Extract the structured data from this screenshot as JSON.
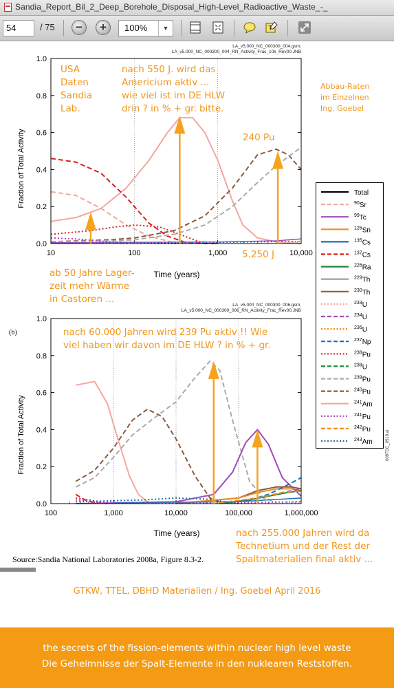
{
  "window": {
    "title": "Sandia_Report_Bil_2_Deep_Borehole_Disposal_High-Level_Radioactive_Waste_-_"
  },
  "toolbar": {
    "page_current": "54",
    "page_total": "/ 75",
    "zoom_value": "100%",
    "zoom_out_label": "−",
    "zoom_in_label": "+"
  },
  "colors": {
    "annotation": "#f0961c",
    "banner": "#f49a13",
    "arrow": "#f7a21c"
  },
  "legend": {
    "items": [
      {
        "label": "Total",
        "sup": "",
        "color": "#000000",
        "dash": "solid"
      },
      {
        "label": "Sr",
        "sup": "90",
        "color": "#f4a7a0",
        "dash": "dash"
      },
      {
        "label": "Tc",
        "sup": "99",
        "color": "#a14cb8",
        "dash": "solid"
      },
      {
        "label": "Sn",
        "sup": "126",
        "color": "#f08c1e",
        "dash": "solid"
      },
      {
        "label": "Cs",
        "sup": "135",
        "color": "#1f6fb0",
        "dash": "solid"
      },
      {
        "label": "Cs",
        "sup": "137",
        "color": "#d91f1f",
        "dash": "dash"
      },
      {
        "label": "Ra",
        "sup": "226",
        "color": "#1e8a3c",
        "dash": "solid"
      },
      {
        "label": "Th",
        "sup": "229",
        "color": "#999999",
        "dash": "solid"
      },
      {
        "label": "Th",
        "sup": "230",
        "color": "#8b5a3c",
        "dash": "solid"
      },
      {
        "label": "U",
        "sup": "233",
        "color": "#f4a7a0",
        "dash": "dot"
      },
      {
        "label": "U",
        "sup": "234",
        "color": "#a14cb8",
        "dash": "dash"
      },
      {
        "label": "U",
        "sup": "236",
        "color": "#f08c1e",
        "dash": "dot"
      },
      {
        "label": "Np",
        "sup": "237",
        "color": "#1f6fb0",
        "dash": "dash"
      },
      {
        "label": "Pu",
        "sup": "238",
        "color": "#d91f1f",
        "dash": "dot"
      },
      {
        "label": "U",
        "sup": "238",
        "color": "#1e8a3c",
        "dash": "dash"
      },
      {
        "label": "Pu",
        "sup": "239",
        "color": "#aaaaaa",
        "dash": "dash"
      },
      {
        "label": "Pu",
        "sup": "240",
        "color": "#8b5a3c",
        "dash": "dash"
      },
      {
        "label": "Am",
        "sup": "241",
        "color": "#f4a7a0",
        "dash": "solid"
      },
      {
        "label": "Pu",
        "sup": "241",
        "color": "#a14cb8",
        "dash": "dot"
      },
      {
        "label": "Pu",
        "sup": "242",
        "color": "#f08c1e",
        "dash": "dash"
      },
      {
        "label": "Am",
        "sup": "243",
        "color": "#1f6fb0",
        "dash": "dot"
      }
    ]
  },
  "chart_data": [
    {
      "type": "line",
      "panel": "a",
      "header_line1": "LA_v5.000_NC_000300_004.gsm;",
      "header_line2": "LA_v5.000_NC_000300_004_RN_Activity_Frac_10k_Rev00.JNB",
      "xlabel": "Time (years)",
      "ylabel": "Fraction of Total Activity",
      "xscale": "log",
      "xlim": [
        10,
        10000
      ],
      "ylim": [
        0,
        1.0
      ],
      "xticks": [
        10,
        100,
        1000,
        10000
      ],
      "xtick_labels": [
        "10",
        "100",
        "1,000",
        "10,000"
      ],
      "yticks": [
        0.0,
        0.2,
        0.4,
        0.6,
        0.8,
        1.0
      ],
      "ytick_labels": [
        "0.0",
        "0.2",
        "0.4",
        "0.6",
        "0.8",
        "1.0"
      ],
      "grid": "vertical-dotted",
      "series": [
        {
          "name": "241Am",
          "color": "#f4a7a0",
          "dash": "solid",
          "width": 2,
          "x": [
            10,
            20,
            40,
            80,
            150,
            250,
            350,
            500,
            700,
            1000,
            1500,
            2000,
            3000,
            5000,
            10000
          ],
          "y": [
            0.12,
            0.14,
            0.19,
            0.3,
            0.45,
            0.6,
            0.68,
            0.68,
            0.6,
            0.45,
            0.23,
            0.1,
            0.03,
            0.01,
            0.0
          ]
        },
        {
          "name": "90Sr",
          "color": "#f4a7a0",
          "dash": "dash",
          "width": 2,
          "x": [
            10,
            20,
            40,
            80,
            150,
            300,
            600,
            1000
          ],
          "y": [
            0.28,
            0.26,
            0.19,
            0.1,
            0.04,
            0.005,
            0.0,
            0.0
          ]
        },
        {
          "name": "137Cs",
          "color": "#d91f1f",
          "dash": "dash",
          "width": 2,
          "x": [
            10,
            20,
            40,
            80,
            150,
            250,
            400,
            700,
            1000
          ],
          "y": [
            0.46,
            0.44,
            0.38,
            0.25,
            0.11,
            0.04,
            0.008,
            0.0,
            0.0
          ]
        },
        {
          "name": "238Pu",
          "color": "#d91f1f",
          "dash": "dot",
          "width": 2,
          "x": [
            10,
            30,
            60,
            100,
            200,
            350,
            600,
            1000
          ],
          "y": [
            0.05,
            0.07,
            0.09,
            0.1,
            0.09,
            0.05,
            0.01,
            0.0
          ]
        },
        {
          "name": "240Pu",
          "color": "#8b5a3c",
          "dash": "dash",
          "width": 2,
          "x": [
            10,
            50,
            100,
            300,
            700,
            1500,
            3000,
            5000,
            7000,
            10000
          ],
          "y": [
            0.01,
            0.02,
            0.03,
            0.07,
            0.15,
            0.3,
            0.48,
            0.51,
            0.48,
            0.4
          ]
        },
        {
          "name": "239Pu",
          "color": "#aaaaaa",
          "dash": "dash",
          "width": 2,
          "x": [
            10,
            50,
            100,
            300,
            700,
            1500,
            3000,
            5000,
            10000
          ],
          "y": [
            0.01,
            0.015,
            0.02,
            0.05,
            0.1,
            0.2,
            0.33,
            0.42,
            0.52
          ]
        },
        {
          "name": "241Pu",
          "color": "#a14cb8",
          "dash": "dot",
          "width": 2,
          "x": [
            10,
            20,
            50,
            100,
            200,
            400
          ],
          "y": [
            0.03,
            0.025,
            0.01,
            0.003,
            0.0,
            0.0
          ]
        },
        {
          "name": "99Tc",
          "color": "#a14cb8",
          "dash": "solid",
          "width": 1.5,
          "x": [
            10,
            1000,
            5000,
            10000
          ],
          "y": [
            0.005,
            0.008,
            0.015,
            0.025
          ]
        },
        {
          "name": "243Am",
          "color": "#1f6fb0",
          "dash": "dot",
          "width": 1.5,
          "x": [
            10,
            1000,
            5000,
            10000
          ],
          "y": [
            0.002,
            0.006,
            0.01,
            0.012
          ]
        },
        {
          "name": "Total",
          "color": "#000000",
          "dash": "solid",
          "width": 1,
          "x": [
            10,
            10000
          ],
          "y": [
            0.0,
            0.0
          ]
        }
      ]
    },
    {
      "type": "line",
      "panel": "b",
      "header_line1": "LA_v5.000_NC_000300_006.gsm;",
      "header_line2": "LA_v5.000_NC_000300_006_RN_Activity_Frac_Rev00.JNB",
      "xlabel": "Time (years)",
      "ylabel": "Fraction of Total Activity",
      "xscale": "log",
      "xlim": [
        100,
        1000000
      ],
      "ylim": [
        0,
        1.0
      ],
      "xticks": [
        100,
        1000,
        10000,
        100000,
        1000000
      ],
      "xtick_labels": [
        "100",
        "1,000",
        "10,000",
        "100,000",
        "1,000,000"
      ],
      "yticks": [
        0.0,
        0.2,
        0.4,
        0.6,
        0.8,
        1.0
      ],
      "ytick_labels": [
        "0.0",
        "0.2",
        "0.4",
        "0.6",
        "0.8",
        "1.0"
      ],
      "grid": "vertical-dotted",
      "series": [
        {
          "name": "241Am",
          "color": "#f4a7a0",
          "dash": "solid",
          "width": 2,
          "x": [
            250,
            500,
            800,
            1200,
            1800,
            2500,
            3500,
            5000
          ],
          "y": [
            0.64,
            0.66,
            0.54,
            0.34,
            0.15,
            0.05,
            0.01,
            0.0
          ]
        },
        {
          "name": "240Pu",
          "color": "#8b5a3c",
          "dash": "dash",
          "width": 2,
          "x": [
            250,
            500,
            1000,
            2000,
            3500,
            6000,
            10000,
            20000,
            35000,
            50000
          ],
          "y": [
            0.12,
            0.18,
            0.3,
            0.45,
            0.51,
            0.47,
            0.35,
            0.15,
            0.03,
            0.01
          ]
        },
        {
          "name": "239Pu",
          "color": "#aaaaaa",
          "dash": "dash",
          "width": 2,
          "x": [
            250,
            500,
            1000,
            2000,
            4000,
            10000,
            20000,
            35000,
            50000,
            80000,
            150000,
            250000,
            400000
          ],
          "y": [
            0.09,
            0.14,
            0.25,
            0.37,
            0.45,
            0.55,
            0.68,
            0.77,
            0.72,
            0.45,
            0.12,
            0.03,
            0.01
          ]
        },
        {
          "name": "137Cs",
          "color": "#d91f1f",
          "dash": "dash",
          "width": 2,
          "x": [
            250,
            350,
            500,
            800
          ],
          "y": [
            0.05,
            0.02,
            0.005,
            0.0
          ]
        },
        {
          "name": "238Pu",
          "color": "#d91f1f",
          "dash": "dot",
          "width": 2,
          "x": [
            250,
            400,
            600,
            1000
          ],
          "y": [
            0.03,
            0.02,
            0.01,
            0.0
          ]
        },
        {
          "name": "99Tc",
          "color": "#a14cb8",
          "dash": "solid",
          "width": 2,
          "x": [
            250,
            10000,
            40000,
            80000,
            130000,
            200000,
            300000,
            500000,
            1000000
          ],
          "y": [
            0.0,
            0.01,
            0.05,
            0.17,
            0.33,
            0.4,
            0.32,
            0.14,
            0.04
          ]
        },
        {
          "name": "230Th",
          "color": "#8b5a3c",
          "dash": "solid",
          "width": 2,
          "x": [
            10000,
            100000,
            200000,
            400000,
            700000,
            1000000
          ],
          "y": [
            0.0,
            0.03,
            0.07,
            0.09,
            0.09,
            0.08
          ]
        },
        {
          "name": "126Sn",
          "color": "#f08c1e",
          "dash": "solid",
          "width": 2,
          "x": [
            10000,
            100000,
            200000,
            400000,
            700000,
            1000000
          ],
          "y": [
            0.0,
            0.03,
            0.06,
            0.08,
            0.08,
            0.07
          ]
        },
        {
          "name": "226Ra",
          "color": "#1e8a3c",
          "dash": "solid",
          "width": 2,
          "x": [
            50000,
            150000,
            300000,
            600000,
            1000000
          ],
          "y": [
            0.0,
            0.02,
            0.04,
            0.06,
            0.07
          ]
        },
        {
          "name": "135Cs",
          "color": "#1f6fb0",
          "dash": "solid",
          "width": 1.5,
          "x": [
            1000,
            100000,
            300000,
            1000000
          ],
          "y": [
            0.005,
            0.01,
            0.02,
            0.03
          ]
        },
        {
          "name": "237Np",
          "color": "#1f6fb0",
          "dash": "dash",
          "width": 2,
          "x": [
            50000,
            150000,
            300000,
            600000,
            1000000
          ],
          "y": [
            0.005,
            0.02,
            0.05,
            0.1,
            0.14
          ]
        },
        {
          "name": "234U",
          "color": "#a14cb8",
          "dash": "dash",
          "width": 2,
          "x": [
            50000,
            200000,
            500000,
            1000000
          ],
          "y": [
            0.005,
            0.03,
            0.06,
            0.08
          ]
        },
        {
          "name": "241Pu",
          "color": "#a14cb8",
          "dash": "dot",
          "width": 2,
          "x": [
            250,
            400,
            800,
            1500,
            5000,
            100000,
            1000000
          ],
          "y": [
            0.02,
            0.015,
            0.005,
            0.003,
            0.003,
            0.005,
            0.01
          ]
        },
        {
          "name": "242Pu",
          "color": "#f08c1e",
          "dash": "dash",
          "width": 2,
          "x": [
            50000,
            200000,
            500000,
            1000000
          ],
          "y": [
            0.005,
            0.03,
            0.06,
            0.07
          ]
        },
        {
          "name": "243Am",
          "color": "#1f6fb0",
          "dash": "dot",
          "width": 2,
          "x": [
            250,
            3000,
            10000,
            30000,
            60000,
            100000
          ],
          "y": [
            0.01,
            0.02,
            0.03,
            0.025,
            0.01,
            0.0
          ]
        },
        {
          "name": "Total",
          "color": "#000000",
          "dash": "solid",
          "width": 1,
          "x": [
            100,
            1000000
          ],
          "y": [
            0.0,
            0.0
          ]
        }
      ]
    }
  ],
  "annotations": {
    "usa_line1": "USA",
    "usa_line2": "Daten",
    "usa_line3": "Sandia",
    "usa_line4": "Lab.",
    "am_line1": "nach 550 J. wird das",
    "am_line2": "Americium aktiv ...",
    "am_line3": "wie viel ist im DE HLW",
    "am_line4": "drin ? in % + gr. bitte.",
    "abbau_line1": "Abbau-Raten",
    "abbau_line2": "im Einzelnen",
    "abbau_line3": "Ing. Goebel",
    "pu240": "240 Pu",
    "years_5250": "5.250 J",
    "castor_line1": "ab 50 Jahre Lager-",
    "castor_line2": "zeit mehr Wärme",
    "castor_line3": "in Castoren ...",
    "pu239_line1": "nach 60.000 Jahren wird 239 Pu aktiv !! Wie",
    "pu239_line2": "viel haben wir davon im DE HLW ? in % + gr.",
    "tc_line1": "nach 255.000 Jahren wird da",
    "tc_line2": "Technetium und der Rest der",
    "tc_line3": "Spaltmaterialien final aktiv ..."
  },
  "figure": {
    "panel_b_label": "(b)",
    "source": "Source:Sandia National Laboratories  2008a, Figure 8.3-2.",
    "side_code": "008TDC_0518.ai"
  },
  "footer": {
    "credit": "GTKW, TTEL, DBHD Materialien / Ing. Goebel April 2016",
    "banner_line1": "the secrets of the fission-elements within nuclear high level waste",
    "banner_line2": "Die Geheimnisse der Spalt-Elemente in den nuklearen Reststoffen."
  }
}
